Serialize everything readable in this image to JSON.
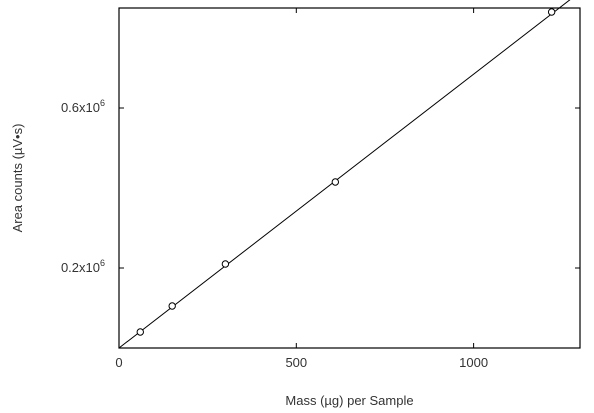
{
  "chart_data": {
    "type": "scatter",
    "xlabel": "Mass (µg) per Sample",
    "ylabel": "Area counts (µV•s)",
    "xlim": [
      0,
      1300
    ],
    "ylim": [
      0,
      0.85
    ],
    "x_unit": "µg",
    "y_unit": "×10^6 µV•s",
    "x_ticks": [
      {
        "value": 0,
        "label": "0"
      },
      {
        "value": 500,
        "label": "500"
      },
      {
        "value": 1000,
        "label": "1000"
      }
    ],
    "y_ticks": [
      {
        "value": 0.2,
        "base": "0.2x10",
        "exp": "6"
      },
      {
        "value": 0.6,
        "base": "0.6x10",
        "exp": "6"
      }
    ],
    "grid": false,
    "series": [
      {
        "marker": "open-circle",
        "x": [
          60,
          150,
          300,
          610,
          1220
        ],
        "y": [
          0.04,
          0.105,
          0.21,
          0.415,
          0.84
        ]
      }
    ],
    "fit_line": {
      "x": [
        0,
        1300
      ],
      "y": [
        0,
        0.89
      ]
    },
    "colors": {
      "axis": "#000000",
      "line": "#000000",
      "marker": "#000000",
      "text": "#333333"
    }
  }
}
